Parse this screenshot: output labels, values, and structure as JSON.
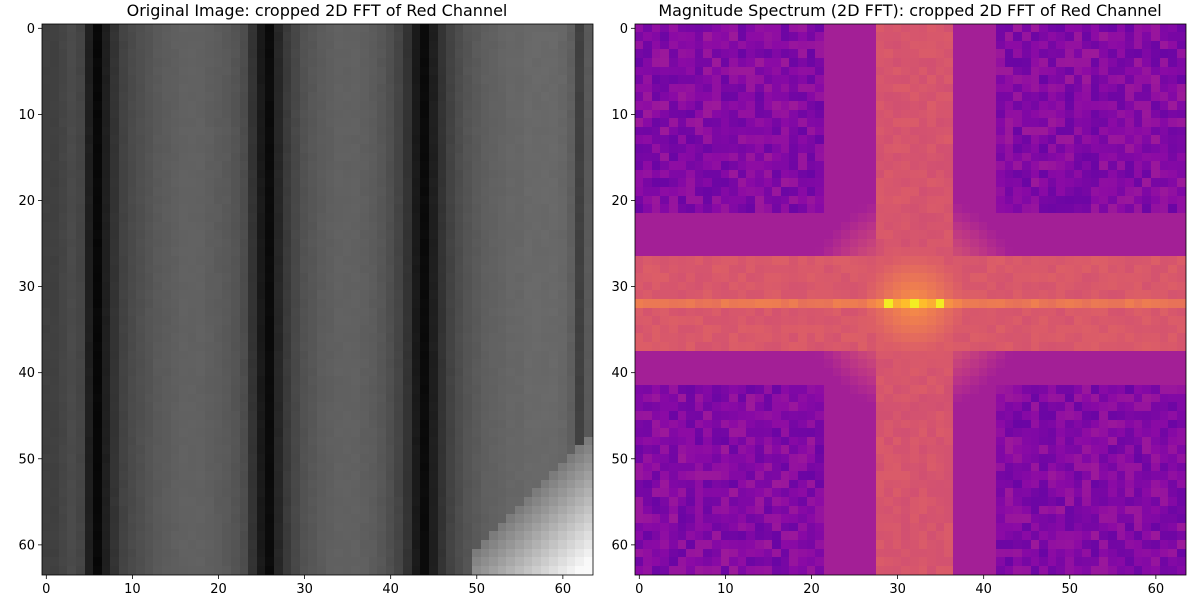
{
  "chart_data": [
    {
      "type": "heatmap",
      "title": "Original Image: cropped 2D FFT of Red Channel",
      "colormap": "gray",
      "grid_size": [
        64,
        64
      ],
      "xlim": [
        -0.5,
        63.5
      ],
      "ylim": [
        63.5,
        -0.5
      ],
      "x_ticks": [
        0,
        10,
        20,
        30,
        40,
        50,
        60
      ],
      "y_ticks": [
        0,
        10,
        20,
        30,
        40,
        50,
        60
      ],
      "grid": false,
      "column_intensity_profile": [
        0.25,
        0.25,
        0.27,
        0.29,
        0.27,
        0.12,
        0.03,
        0.12,
        0.2,
        0.26,
        0.29,
        0.31,
        0.33,
        0.35,
        0.36,
        0.37,
        0.38,
        0.38,
        0.38,
        0.37,
        0.36,
        0.35,
        0.33,
        0.3,
        0.2,
        0.1,
        0.04,
        0.15,
        0.23,
        0.28,
        0.32,
        0.34,
        0.36,
        0.37,
        0.38,
        0.38,
        0.38,
        0.37,
        0.36,
        0.34,
        0.31,
        0.27,
        0.2,
        0.1,
        0.04,
        0.12,
        0.2,
        0.26,
        0.3,
        0.33,
        0.35,
        0.37,
        0.38,
        0.39,
        0.4,
        0.4,
        0.41,
        0.41,
        0.41,
        0.41,
        0.4,
        0.37,
        0.25,
        0.35
      ],
      "bright_corner": {
        "row_range": [
          48,
          63
        ],
        "col_range": [
          50,
          63
        ],
        "peak_value": 0.98
      }
    },
    {
      "type": "heatmap",
      "title": "Magnitude Spectrum (2D FFT): cropped 2D FFT of Red Channel",
      "colormap": "plasma",
      "grid_size": [
        64,
        64
      ],
      "xlim": [
        -0.5,
        63.5
      ],
      "ylim": [
        63.5,
        -0.5
      ],
      "x_ticks": [
        0,
        10,
        20,
        30,
        40,
        50,
        60
      ],
      "y_ticks": [
        0,
        10,
        20,
        30,
        40,
        50,
        60
      ],
      "grid": false,
      "center": [
        32,
        32
      ],
      "background_level": 0.27,
      "vertical_band_cols": [
        28,
        36
      ],
      "horizontal_band_rows": [
        27,
        37
      ],
      "peak_row": 32,
      "brightest_cells": [
        [
          32,
          32
        ],
        [
          32,
          29
        ],
        [
          32,
          35
        ]
      ]
    }
  ]
}
